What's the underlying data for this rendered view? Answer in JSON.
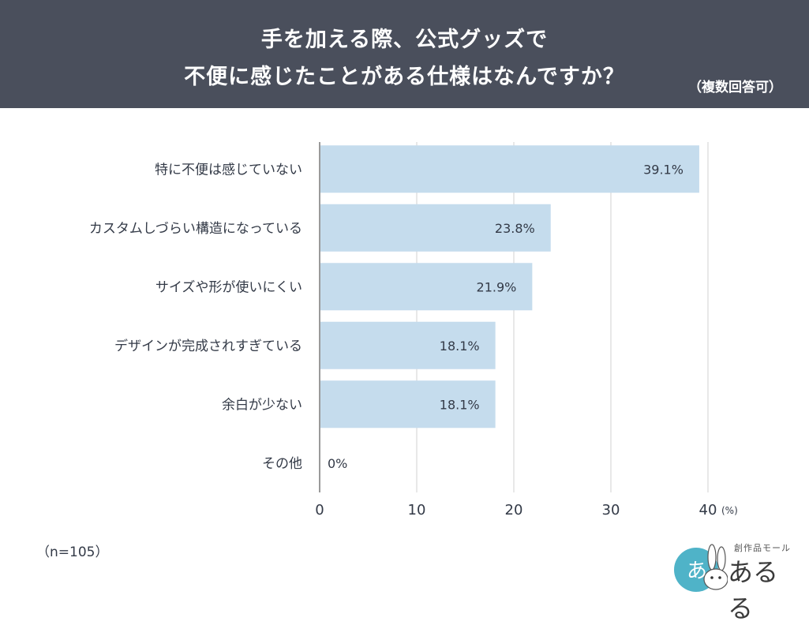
{
  "header": {
    "title_line1": "手を加える際、公式グッズで",
    "title_line2": "不便に感じたことがある仕様はなんですか？",
    "note": "（複数回答可）"
  },
  "sample_size": "（n=105）",
  "logo": {
    "sub_text": "創作品モール",
    "main_text": "あるる",
    "badge_text": "あ"
  },
  "colors": {
    "header_bg": "#4a4f5c",
    "bar": "#c5dced",
    "grid": "#d0d0d0",
    "axis": "#9a9a9a",
    "text": "#333a47",
    "logo_badge": "#4fb3c8"
  },
  "chart_data": {
    "type": "bar",
    "orientation": "horizontal",
    "categories": [
      "特に不便は感じていない",
      "カスタムしづらい構造になっている",
      "サイズや形が使いにくい",
      "デザインが完成されすぎている",
      "余白が少ない",
      "その他"
    ],
    "values": [
      39.1,
      23.8,
      21.9,
      18.1,
      18.1,
      0
    ],
    "data_labels": [
      "39.1%",
      "23.8%",
      "21.9%",
      "18.1%",
      "18.1%",
      "0%"
    ],
    "xlim": [
      0,
      40
    ],
    "x_ticks": [
      "0",
      "10",
      "20",
      "30",
      "40"
    ],
    "unit_label": "(%)",
    "grid": true
  }
}
